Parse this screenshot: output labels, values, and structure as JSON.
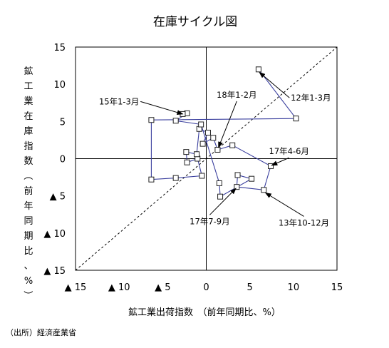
{
  "chart_data": {
    "type": "scatter",
    "title": "在庫サイクル図",
    "xlabel": "鉱工業出荷指数　（前年同期比、%）",
    "ylabel": "鉱工業在庫指数（前年同期比、%）",
    "xlim": [
      -15,
      15
    ],
    "ylim": [
      -15,
      15
    ],
    "x_ticks": [
      {
        "value": -15,
        "label": "▲ 15"
      },
      {
        "value": -10,
        "label": "▲ 10"
      },
      {
        "value": -5,
        "label": "▲ 5"
      },
      {
        "value": 0,
        "label": "0"
      },
      {
        "value": 5,
        "label": "5"
      },
      {
        "value": 10,
        "label": "10"
      },
      {
        "value": 15,
        "label": "15"
      }
    ],
    "y_ticks": [
      {
        "value": 15,
        "label": "15"
      },
      {
        "value": 10,
        "label": "10"
      },
      {
        "value": 5,
        "label": "5"
      },
      {
        "value": 0,
        "label": "0"
      },
      {
        "value": -5,
        "label": "▲ 5"
      },
      {
        "value": -10,
        "label": "▲ 10"
      },
      {
        "value": -15,
        "label": "▲ 15"
      }
    ],
    "grid": false,
    "diagonal_reference": "y=x",
    "series": [
      {
        "color": "#3a3f9e",
        "marker": "square",
        "points": [
          {
            "x": 6.0,
            "y": 12.0
          },
          {
            "x": 10.3,
            "y": 5.4
          },
          {
            "x": -6.3,
            "y": 5.2
          },
          {
            "x": -6.3,
            "y": -2.8
          },
          {
            "x": -3.5,
            "y": -2.6
          },
          {
            "x": -0.5,
            "y": -2.3
          },
          {
            "x": -1.0,
            "y": 0.0
          },
          {
            "x": -2.2,
            "y": -0.5
          },
          {
            "x": -2.3,
            "y": 0.9
          },
          {
            "x": -1.1,
            "y": 0.6
          },
          {
            "x": -0.8,
            "y": 4.0
          },
          {
            "x": 0.2,
            "y": 3.5
          },
          {
            "x": -0.4,
            "y": 2.0
          },
          {
            "x": 0.8,
            "y": 2.8
          },
          {
            "x": 1.3,
            "y": 1.2
          },
          {
            "x": 3.0,
            "y": 1.8
          },
          {
            "x": 7.4,
            "y": -1.0
          },
          {
            "x": 6.6,
            "y": -4.2
          },
          {
            "x": 3.5,
            "y": -3.8
          },
          {
            "x": 3.6,
            "y": -2.2
          },
          {
            "x": 5.2,
            "y": -2.7
          },
          {
            "x": 1.6,
            "y": -5.1
          },
          {
            "x": 1.5,
            "y": -3.3
          },
          {
            "x": -0.6,
            "y": 4.6
          },
          {
            "x": -3.5,
            "y": 5.1
          },
          {
            "x": -2.2,
            "y": 6.1
          },
          {
            "x": -2.7,
            "y": 6.0
          }
        ]
      }
    ],
    "annotations": [
      {
        "text": "12年1-3月",
        "label_at": [
          12.0,
          7.8
        ],
        "arrow_to": [
          6.1,
          11.6
        ]
      },
      {
        "text": "15年1-3月",
        "label_at": [
          -10.0,
          7.3
        ],
        "arrow_to": [
          -2.7,
          6.0
        ]
      },
      {
        "text": "18年1-2月",
        "label_at": [
          3.5,
          8.2
        ],
        "arrow_to": [
          1.4,
          1.5
        ]
      },
      {
        "text": "17年4-6月",
        "label_at": [
          9.5,
          0.6
        ],
        "arrow_to": [
          7.5,
          -0.9
        ]
      },
      {
        "text": "13年10-12月",
        "label_at": [
          11.2,
          -9.0
        ],
        "arrow_to": [
          6.8,
          -4.6
        ]
      },
      {
        "text": "17年7-9月",
        "label_at": [
          0.4,
          -8.8
        ],
        "arrow_to": [
          3.4,
          -4.0
        ]
      }
    ]
  },
  "source_note": "（出所）経済産業省"
}
